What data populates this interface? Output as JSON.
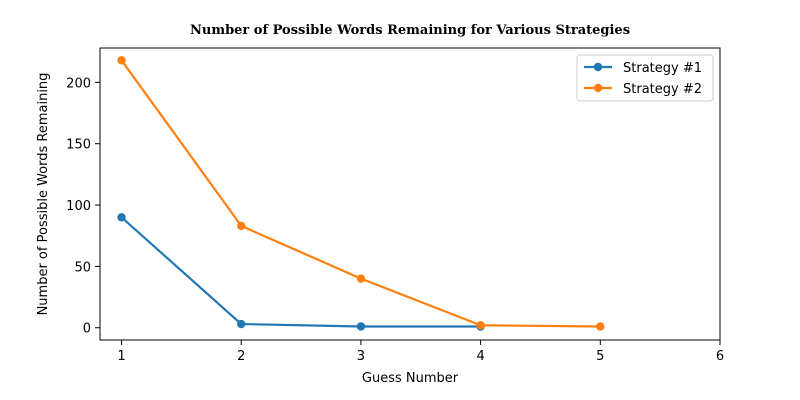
{
  "chart_data": {
    "type": "line",
    "title": "Number of Possible Words Remaining for Various Strategies",
    "xlabel": "Guess Number",
    "ylabel": "Number of Possible Words Remaining",
    "xlim": [
      0.82,
      6.0
    ],
    "ylim": [
      -10,
      228
    ],
    "xticks": [
      1,
      2,
      3,
      4,
      5,
      6
    ],
    "yticks": [
      0,
      50,
      100,
      150,
      200
    ],
    "grid": false,
    "legend_position": "top-right",
    "series": [
      {
        "name": "Strategy #1",
        "color": "#1f77b4",
        "x": [
          1,
          2,
          3,
          4
        ],
        "y": [
          90,
          3,
          1,
          1
        ]
      },
      {
        "name": "Strategy #2",
        "color": "#ff7f0e",
        "x": [
          1,
          2,
          3,
          4,
          5
        ],
        "y": [
          218,
          83,
          40,
          2,
          1
        ]
      }
    ]
  }
}
